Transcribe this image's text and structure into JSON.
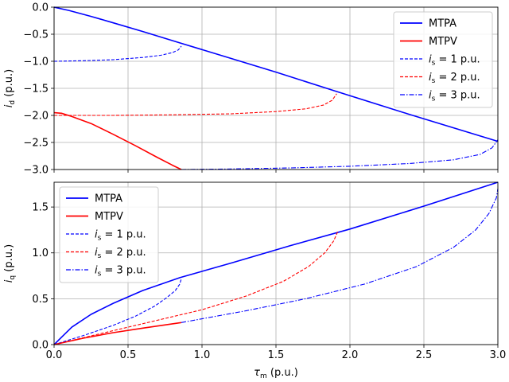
{
  "chart_data": [
    {
      "type": "line",
      "ylabel": "i_d (p.u.)",
      "xlim": [
        0,
        3
      ],
      "ylim": [
        -3,
        0
      ],
      "xticks": [
        0,
        0.5,
        1,
        1.5,
        2,
        2.5,
        3
      ],
      "yticks": [
        0,
        -0.5,
        -1,
        -1.5,
        -2,
        -2.5,
        -3
      ],
      "ytick_labels": [
        "0.0",
        "−0.5",
        "−1.0",
        "−1.5",
        "−2.0",
        "−2.5",
        "−3.0"
      ],
      "grid": true,
      "legend_position": "top-right",
      "series": [
        {
          "name": "MTPA",
          "color": "#0000ff",
          "style": "solid",
          "x": [
            0,
            0.1,
            0.25,
            0.4,
            0.6,
            0.85,
            1.2,
            1.5,
            1.9,
            2.4,
            3.0
          ],
          "y": [
            0,
            -0.06,
            -0.17,
            -0.29,
            -0.45,
            -0.66,
            -0.95,
            -1.2,
            -1.55,
            -1.98,
            -2.48
          ]
        },
        {
          "name": "MTPV",
          "color": "#ff0000",
          "style": "solid",
          "x": [
            0,
            0.05,
            0.12,
            0.25,
            0.4,
            0.55,
            0.7,
            0.8,
            0.86
          ],
          "y": [
            -1.95,
            -1.96,
            -2.02,
            -2.15,
            -2.35,
            -2.56,
            -2.78,
            -2.92,
            -3.0
          ]
        },
        {
          "name": "is = 1 p.u.",
          "color": "#0000ff",
          "style": "dashed",
          "x": [
            0,
            0.2,
            0.4,
            0.6,
            0.72,
            0.8,
            0.84,
            0.86
          ],
          "y": [
            -1.0,
            -0.99,
            -0.97,
            -0.93,
            -0.89,
            -0.84,
            -0.79,
            -0.72
          ]
        },
        {
          "name": "is = 2 p.u.",
          "color": "#ff0000",
          "style": "dashed",
          "x": [
            0,
            0.4,
            0.8,
            1.2,
            1.5,
            1.7,
            1.82,
            1.88,
            1.91
          ],
          "y": [
            -2.0,
            -2.0,
            -1.99,
            -1.97,
            -1.93,
            -1.88,
            -1.81,
            -1.72,
            -1.6
          ]
        },
        {
          "name": "is = 3 p.u.",
          "color": "#0000ff",
          "style": "dashdot",
          "x": [
            0.86,
            1.2,
            1.6,
            2.0,
            2.4,
            2.7,
            2.88,
            2.96,
            3.0
          ],
          "y": [
            -3.0,
            -2.99,
            -2.97,
            -2.94,
            -2.89,
            -2.82,
            -2.72,
            -2.6,
            -2.45
          ]
        }
      ]
    },
    {
      "type": "line",
      "xlabel": "τm (p.u.)",
      "ylabel": "i_q (p.u.)",
      "xlim": [
        0,
        3
      ],
      "ylim": [
        0,
        1.77
      ],
      "xticks": [
        0,
        0.5,
        1,
        1.5,
        2,
        2.5,
        3
      ],
      "xtick_labels": [
        "0.0",
        "0.5",
        "1.0",
        "1.5",
        "2.0",
        "2.5",
        "3.0"
      ],
      "yticks": [
        0,
        0.5,
        1,
        1.5
      ],
      "ytick_labels": [
        "0.0",
        "0.5",
        "1.0",
        "1.5"
      ],
      "grid": true,
      "legend_position": "top-left",
      "series": [
        {
          "name": "MTPA",
          "color": "#0000ff",
          "style": "solid",
          "x": [
            0,
            0.05,
            0.12,
            0.25,
            0.4,
            0.6,
            0.85,
            1.2,
            1.6,
            2.0,
            2.5,
            3.0
          ],
          "y": [
            0,
            0.08,
            0.19,
            0.33,
            0.45,
            0.59,
            0.73,
            0.89,
            1.08,
            1.26,
            1.51,
            1.77
          ]
        },
        {
          "name": "MTPV",
          "color": "#ff0000",
          "style": "solid",
          "x": [
            0,
            0.2,
            0.4,
            0.6,
            0.86
          ],
          "y": [
            0,
            0.07,
            0.13,
            0.18,
            0.24
          ]
        },
        {
          "name": "is = 1 p.u.",
          "color": "#0000ff",
          "style": "dashed",
          "x": [
            0,
            0.2,
            0.4,
            0.55,
            0.68,
            0.76,
            0.82,
            0.85,
            0.86
          ],
          "y": [
            0,
            0.1,
            0.21,
            0.31,
            0.42,
            0.51,
            0.59,
            0.66,
            0.72
          ]
        },
        {
          "name": "is = 2 p.u.",
          "color": "#ff0000",
          "style": "dashed",
          "x": [
            0,
            0.5,
            1.0,
            1.3,
            1.55,
            1.72,
            1.83,
            1.89,
            1.92
          ],
          "y": [
            0,
            0.19,
            0.38,
            0.53,
            0.69,
            0.85,
            1.0,
            1.13,
            1.24
          ]
        },
        {
          "name": "is = 3 p.u.",
          "color": "#0000ff",
          "style": "dashdot",
          "x": [
            0.86,
            1.3,
            1.7,
            2.1,
            2.45,
            2.7,
            2.85,
            2.94,
            2.99,
            3.0
          ],
          "y": [
            0.24,
            0.37,
            0.5,
            0.66,
            0.85,
            1.06,
            1.25,
            1.43,
            1.6,
            1.7
          ]
        }
      ]
    }
  ]
}
